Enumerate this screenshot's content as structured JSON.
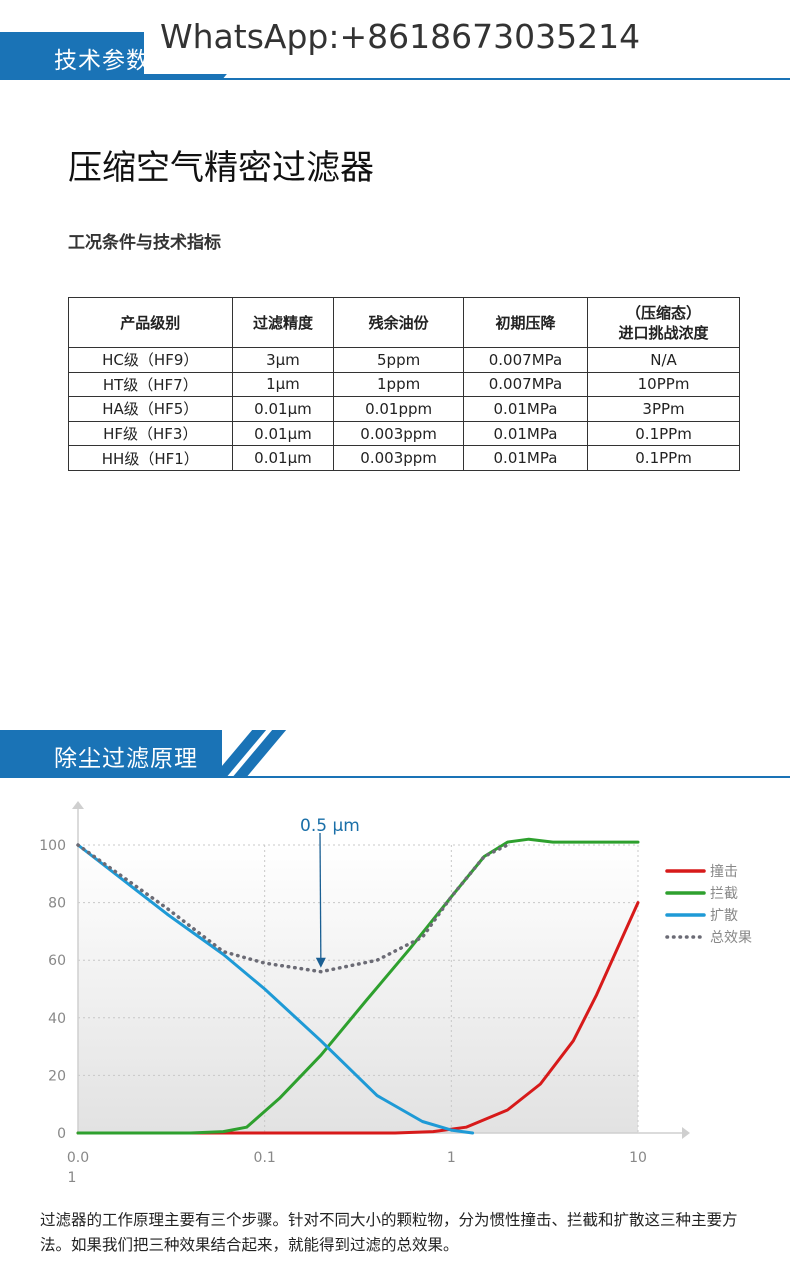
{
  "banner1": {
    "label": "技术参数"
  },
  "watermark": "WhatsApp:+8618673035214",
  "page_title": "压缩空气精密过滤器",
  "section_sub": "工况条件与技术指标",
  "table": {
    "headers": [
      "产品级别",
      "过滤精度",
      "残余油份",
      "初期压降",
      "（压缩态）\n进口挑战浓度"
    ],
    "rows": [
      [
        "HC级（HF9）",
        "3μm",
        "5ppm",
        "0.007MPa",
        "N/A"
      ],
      [
        "HT级（HF7）",
        "1μm",
        "1ppm",
        "0.007MPa",
        "10PPm"
      ],
      [
        "HA级（HF5）",
        "0.01μm",
        "0.01ppm",
        "0.01MPa",
        "3PPm"
      ],
      [
        "HF级（HF3）",
        "0.01μm",
        "0.003ppm",
        "0.01MPa",
        "0.1PPm"
      ],
      [
        "HH级（HF1）",
        "0.01μm",
        "0.003ppm",
        "0.01MPa",
        "0.1PPm"
      ]
    ]
  },
  "banner2": {
    "label": "除尘过滤原理"
  },
  "chart_data": {
    "type": "line",
    "x_scale": "log",
    "xlim": [
      0.01,
      10
    ],
    "ylim": [
      0,
      100
    ],
    "x_ticks": [
      {
        "v": 0.01,
        "label": "0.0\n1"
      },
      {
        "v": 0.1,
        "label": "0.1"
      },
      {
        "v": 1,
        "label": "1"
      },
      {
        "v": 10,
        "label": "10"
      }
    ],
    "y_ticks": [
      0,
      20,
      40,
      60,
      80,
      100
    ],
    "grid": true,
    "annotation": {
      "text": "0.5 μm",
      "x": 0.2,
      "y": 56
    },
    "legend_position": "right",
    "series": [
      {
        "name": "撞击",
        "color": "#d71a1a",
        "style": "solid",
        "x": [
          0.01,
          0.1,
          0.5,
          0.8,
          1.2,
          2,
          3,
          4.5,
          6,
          8,
          10
        ],
        "y": [
          0,
          0,
          0,
          0.5,
          2,
          8,
          17,
          32,
          48,
          66,
          80
        ]
      },
      {
        "name": "拦截",
        "color": "#2ea02e",
        "style": "solid",
        "x": [
          0.01,
          0.04,
          0.06,
          0.08,
          0.12,
          0.2,
          0.35,
          0.6,
          1,
          1.5,
          2,
          2.6,
          3.5,
          10
        ],
        "y": [
          0,
          0,
          0.5,
          2,
          12,
          27,
          46,
          64,
          82,
          96,
          101,
          102,
          101,
          101
        ]
      },
      {
        "name": "扩散",
        "color": "#1e9ad6",
        "style": "solid",
        "x": [
          0.01,
          0.03,
          0.06,
          0.1,
          0.2,
          0.4,
          0.7,
          1,
          1.3
        ],
        "y": [
          100,
          76,
          62,
          50,
          32,
          13,
          4,
          1,
          0
        ]
      },
      {
        "name": "总效果",
        "color": "#6b6b75",
        "style": "dotted",
        "x": [
          0.01,
          0.03,
          0.06,
          0.1,
          0.2,
          0.4,
          0.7,
          1,
          1.5,
          2
        ],
        "y": [
          100,
          78,
          63,
          59,
          56,
          60,
          68,
          82,
          96,
          100
        ]
      }
    ]
  },
  "description": "过滤器的工作原理主要有三个步骤。针对不同大小的颗粒物，分为惯性撞击、拦截和扩散这三种主要方法。如果我们把三种效果结合起来，就能得到过滤的总效果。"
}
